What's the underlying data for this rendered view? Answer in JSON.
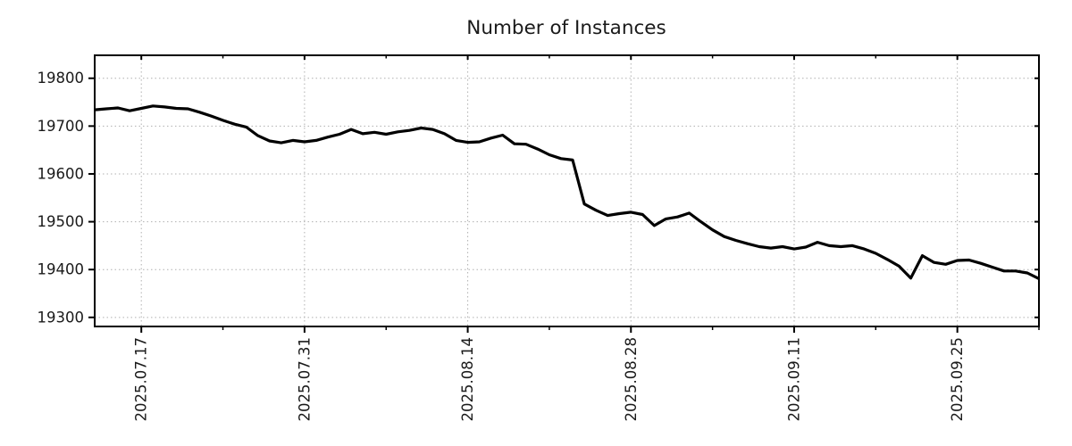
{
  "chart_data": {
    "type": "line",
    "title": "Number of Instances",
    "xlabel": "",
    "ylabel": "",
    "grid": true,
    "legend": false,
    "ylim": [
      19281,
      19848
    ],
    "y_ticks": [
      19300,
      19400,
      19500,
      19600,
      19700,
      19800
    ],
    "x_major_ticks": [
      {
        "index": 4,
        "label": "2025.07.17"
      },
      {
        "index": 18,
        "label": "2025.07.31"
      },
      {
        "index": 32,
        "label": "2025.08.14"
      },
      {
        "index": 46,
        "label": "2025.08.28"
      },
      {
        "index": 60,
        "label": "2025.09.11"
      },
      {
        "index": 74,
        "label": "2025.09.25"
      }
    ],
    "x_minor_tick_indices": [
      11,
      25,
      39,
      53,
      67,
      81
    ],
    "colors": {
      "line": "#000000",
      "grid": "#b0b0b0",
      "axis": "#000000",
      "text": "#1a1a1a",
      "background": "#ffffff"
    },
    "series": [
      {
        "name": "instances",
        "x": [
          "2025.07.13",
          "2025.07.14",
          "2025.07.15",
          "2025.07.16",
          "2025.07.17",
          "2025.07.18",
          "2025.07.19",
          "2025.07.20",
          "2025.07.21",
          "2025.07.22",
          "2025.07.23",
          "2025.07.24",
          "2025.07.25",
          "2025.07.26",
          "2025.07.27",
          "2025.07.28",
          "2025.07.29",
          "2025.07.30",
          "2025.07.31",
          "2025.08.01",
          "2025.08.02",
          "2025.08.03",
          "2025.08.04",
          "2025.08.05",
          "2025.08.06",
          "2025.08.07",
          "2025.08.08",
          "2025.08.09",
          "2025.08.10",
          "2025.08.11",
          "2025.08.12",
          "2025.08.13",
          "2025.08.14",
          "2025.08.15",
          "2025.08.16",
          "2025.08.17",
          "2025.08.18",
          "2025.08.19",
          "2025.08.20",
          "2025.08.21",
          "2025.08.22",
          "2025.08.23",
          "2025.08.24",
          "2025.08.25",
          "2025.08.26",
          "2025.08.27",
          "2025.08.28",
          "2025.08.29",
          "2025.08.30",
          "2025.08.31",
          "2025.09.01",
          "2025.09.02",
          "2025.09.03",
          "2025.09.04",
          "2025.09.05",
          "2025.09.06",
          "2025.09.07",
          "2025.09.08",
          "2025.09.09",
          "2025.09.10",
          "2025.09.11",
          "2025.09.12",
          "2025.09.13",
          "2025.09.14",
          "2025.09.15",
          "2025.09.16",
          "2025.09.17",
          "2025.09.18",
          "2025.09.19",
          "2025.09.20",
          "2025.09.21",
          "2025.09.22",
          "2025.09.23",
          "2025.09.24",
          "2025.09.25",
          "2025.09.26",
          "2025.09.27",
          "2025.09.28",
          "2025.09.29",
          "2025.09.30",
          "2025.10.01",
          "2025.10.02"
        ],
        "values": [
          19734,
          19736,
          19738,
          19732,
          19737,
          19742,
          19740,
          19737,
          19736,
          19729,
          19721,
          19712,
          19704,
          19698,
          19680,
          19669,
          19665,
          19670,
          19667,
          19670,
          19677,
          19683,
          19693,
          19684,
          19687,
          19683,
          19688,
          19691,
          19696,
          19693,
          19684,
          19670,
          19666,
          19667,
          19675,
          19681,
          19663,
          19662,
          19652,
          19640,
          19632,
          19629,
          19537,
          19524,
          19513,
          19517,
          19520,
          19515,
          19492,
          19506,
          19510,
          19518,
          19500,
          19483,
          19469,
          19461,
          19454,
          19448,
          19445,
          19448,
          19443,
          19447,
          19457,
          19450,
          19448,
          19450,
          19443,
          19434,
          19421,
          19407,
          19382,
          19429,
          19415,
          19411,
          19419,
          19420,
          19413,
          19405,
          19397,
          19397,
          19393,
          19381
        ]
      }
    ]
  }
}
